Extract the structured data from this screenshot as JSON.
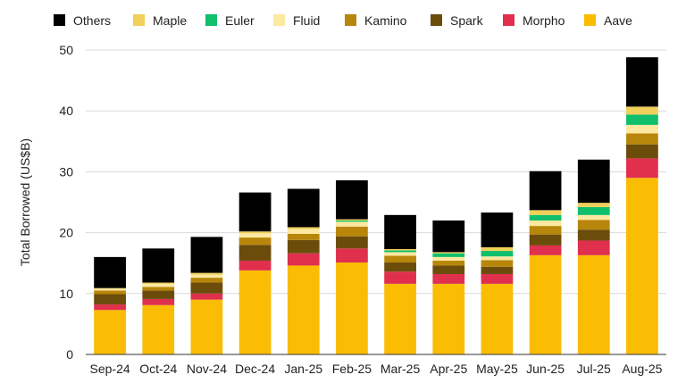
{
  "chart_data": {
    "type": "bar",
    "stacked": true,
    "title": "",
    "xlabel": "",
    "ylabel": "Total Borrowed (US$B)",
    "ylim": [
      0,
      50
    ],
    "yticks": [
      0,
      10,
      20,
      30,
      40,
      50
    ],
    "grid": true,
    "legend_position": "top",
    "categories": [
      "Sep-24",
      "Oct-24",
      "Nov-24",
      "Dec-24",
      "Jan-25",
      "Feb-25",
      "Mar-25",
      "Apr-25",
      "May-25",
      "Jun-25",
      "Jul-25",
      "Aug-25"
    ],
    "legend_order": [
      "Others",
      "Maple",
      "Euler",
      "Fluid",
      "Kamino",
      "Spark",
      "Morpho",
      "Aave"
    ],
    "series": [
      {
        "name": "Aave",
        "color": "#FBBC04",
        "values": [
          7.3,
          8.1,
          9.0,
          13.8,
          14.6,
          15.1,
          11.6,
          11.6,
          11.6,
          16.3,
          16.3,
          29.0
        ]
      },
      {
        "name": "Morpho",
        "color": "#E0304E",
        "values": [
          0.9,
          1.0,
          1.0,
          1.6,
          2.0,
          2.3,
          2.0,
          1.6,
          1.6,
          1.6,
          2.4,
          3.2
        ]
      },
      {
        "name": "Spark",
        "color": "#6B4C0B",
        "values": [
          1.7,
          1.4,
          1.8,
          2.6,
          2.2,
          2.0,
          1.5,
          1.4,
          1.2,
          1.8,
          1.8,
          2.3
        ]
      },
      {
        "name": "Kamino",
        "color": "#B8860B",
        "values": [
          0.6,
          0.6,
          0.8,
          1.2,
          1.0,
          1.6,
          1.1,
          0.8,
          1.1,
          1.4,
          1.6,
          1.8
        ]
      },
      {
        "name": "Fluid",
        "color": "#FCE8A0",
        "values": [
          0.3,
          0.5,
          0.5,
          0.7,
          0.8,
          0.8,
          0.6,
          0.6,
          0.6,
          0.9,
          0.8,
          1.4
        ]
      },
      {
        "name": "Euler",
        "color": "#0FBF6C",
        "values": [
          0.0,
          0.0,
          0.0,
          0.0,
          0.0,
          0.2,
          0.3,
          0.6,
          0.9,
          0.9,
          1.3,
          1.7
        ]
      },
      {
        "name": "Maple",
        "color": "#F0CF5A",
        "values": [
          0.1,
          0.2,
          0.3,
          0.3,
          0.3,
          0.2,
          0.2,
          0.2,
          0.6,
          0.8,
          0.7,
          1.3
        ]
      },
      {
        "name": "Others",
        "color": "#000000",
        "values": [
          5.1,
          5.6,
          5.9,
          6.4,
          6.3,
          6.4,
          5.6,
          5.2,
          5.7,
          6.4,
          7.1,
          8.1
        ]
      }
    ]
  }
}
